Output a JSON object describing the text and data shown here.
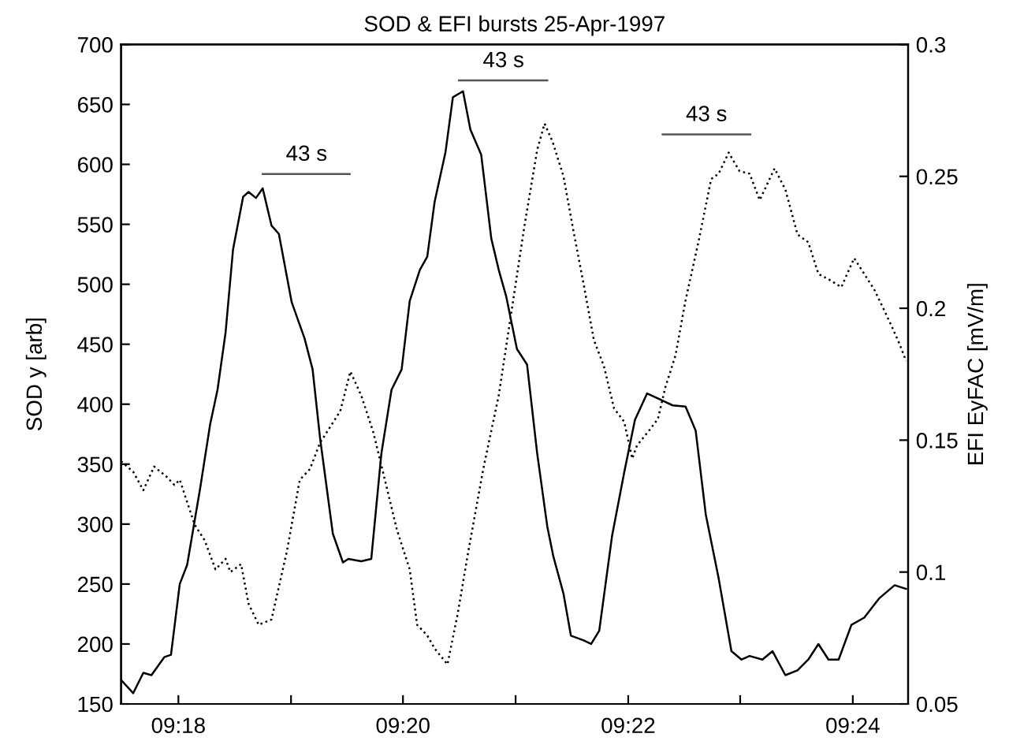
{
  "chart_data": {
    "type": "line",
    "title": "SOD & EFI bursts 25-Apr-1997",
    "ylabel": "SOD y [arb]",
    "y2label": "EFI EyFAC [mV/m]",
    "xlim": [
      9.2915,
      9.4082
    ],
    "xticks": [
      {
        "value": 9.3,
        "label": "09:18"
      },
      {
        "value": 9.3167,
        "label": null
      },
      {
        "value": 9.3333,
        "label": "09:20"
      },
      {
        "value": 9.35,
        "label": null
      },
      {
        "value": 9.3667,
        "label": "09:22"
      },
      {
        "value": 9.3833,
        "label": null
      },
      {
        "value": 9.4,
        "label": "09:24"
      }
    ],
    "ylim": [
      150,
      700
    ],
    "yticks": [
      150,
      200,
      250,
      300,
      350,
      400,
      450,
      500,
      550,
      600,
      650,
      700
    ],
    "y2lim": [
      0.05,
      0.3
    ],
    "y2ticks": [
      0.05,
      0.1,
      0.15,
      0.2,
      0.25,
      0.3
    ],
    "grid": false,
    "marker": "none",
    "series": [
      {
        "color": "#000000",
        "line_style": "solid",
        "x": [
          9.2915,
          9.2933,
          9.2948,
          9.296,
          9.2979,
          9.2989,
          9.3002,
          9.3013,
          9.3032,
          9.3047,
          9.3058,
          9.307,
          9.3081,
          9.3096,
          9.3104,
          9.3115,
          9.3125,
          9.3138,
          9.3149,
          9.3168,
          9.3187,
          9.3199,
          9.321,
          9.3229,
          9.3244,
          9.3252,
          9.3271,
          9.3286,
          9.3301,
          9.3316,
          9.3331,
          9.3343,
          9.3358,
          9.3369,
          9.338,
          9.3396,
          9.3407,
          9.3422,
          9.3433,
          9.3449,
          9.3464,
          9.3475,
          9.3486,
          9.3502,
          9.3517,
          9.3532,
          9.3547,
          9.3556,
          9.3571,
          9.3582,
          9.3601,
          9.3612,
          9.3624,
          9.3643,
          9.3661,
          9.3677,
          9.3695,
          9.3714,
          9.3733,
          9.3752,
          9.3767,
          9.3782,
          9.3801,
          9.382,
          9.3835,
          9.3847,
          9.3866,
          9.3881,
          9.39,
          9.3918,
          9.3934,
          9.3949,
          9.3964,
          9.3979,
          9.3998,
          9.4017,
          9.4039,
          9.4062,
          9.4079
        ],
        "values": [
          170,
          159,
          176,
          174,
          189,
          191,
          250,
          266,
          329,
          383,
          412,
          460,
          529,
          573,
          577,
          572,
          580,
          549,
          542,
          485,
          455,
          429,
          372,
          292,
          268,
          271,
          269,
          271,
          359,
          412,
          429,
          486,
          512,
          523,
          569,
          610,
          656,
          661,
          629,
          608,
          538,
          512,
          490,
          446,
          433,
          359,
          298,
          273,
          242,
          207,
          203,
          200,
          211,
          290,
          343,
          387,
          409,
          404,
          399,
          398,
          378,
          308,
          255,
          194,
          187,
          190,
          187,
          194,
          174,
          178,
          187,
          200,
          187,
          187,
          216,
          222,
          238,
          249,
          246
        ]
      },
      {
        "color": "#000000",
        "line_style": "dotted",
        "axis": "y2",
        "x": [
          9.2915,
          9.2933,
          9.2948,
          9.2964,
          9.2983,
          9.2994,
          9.3002,
          9.3024,
          9.3039,
          9.3055,
          9.307,
          9.3077,
          9.3093,
          9.3104,
          9.3119,
          9.3138,
          9.3161,
          9.318,
          9.3195,
          9.321,
          9.3225,
          9.324,
          9.3255,
          9.3271,
          9.3289,
          9.3308,
          9.3324,
          9.3343,
          9.3354,
          9.3369,
          9.338,
          9.3399,
          9.3414,
          9.343,
          9.3452,
          9.3475,
          9.3494,
          9.3513,
          9.3532,
          9.3543,
          9.3555,
          9.3571,
          9.3586,
          9.3601,
          9.3616,
          9.3631,
          9.3646,
          9.3661,
          9.3673,
          9.368,
          9.3699,
          9.3711,
          9.3722,
          9.3737,
          9.3752,
          9.3771,
          9.379,
          9.3801,
          9.3816,
          9.3832,
          9.3847,
          9.3862,
          9.3873,
          9.3884,
          9.39,
          9.3918,
          9.3934,
          9.3949,
          9.3964,
          9.3983,
          9.4002,
          9.4017,
          9.4032,
          9.4047,
          9.4058,
          9.407,
          9.4079
        ],
        "values": [
          0.142,
          0.138,
          0.131,
          0.14,
          0.136,
          0.133,
          0.135,
          0.118,
          0.112,
          0.101,
          0.105,
          0.1,
          0.103,
          0.088,
          0.08,
          0.082,
          0.108,
          0.135,
          0.139,
          0.149,
          0.155,
          0.161,
          0.176,
          0.167,
          0.153,
          0.133,
          0.116,
          0.101,
          0.08,
          0.076,
          0.071,
          0.065,
          0.084,
          0.108,
          0.139,
          0.167,
          0.199,
          0.231,
          0.26,
          0.27,
          0.263,
          0.25,
          0.229,
          0.209,
          0.188,
          0.178,
          0.162,
          0.157,
          0.143,
          0.148,
          0.154,
          0.158,
          0.17,
          0.182,
          0.203,
          0.225,
          0.249,
          0.251,
          0.259,
          0.252,
          0.251,
          0.241,
          0.247,
          0.253,
          0.245,
          0.228,
          0.225,
          0.213,
          0.211,
          0.208,
          0.219,
          0.213,
          0.207,
          0.199,
          0.193,
          0.186,
          0.18
        ]
      },
      {
        "color": "#555555",
        "line_style": "solid",
        "x": [
          9.3125,
          9.3254
        ],
        "values": [
          592,
          592
        ]
      },
      {
        "color": "#555555",
        "line_style": "solid",
        "x": [
          9.3416,
          9.3547
        ],
        "values": [
          670,
          670
        ]
      },
      {
        "color": "#555555",
        "line_style": "solid",
        "x": [
          9.3718,
          9.3848
        ],
        "values": [
          625,
          625
        ]
      }
    ],
    "annotations": [
      {
        "text": "43 s",
        "x": 9.319,
        "y": 592
      },
      {
        "text": "43 s",
        "x": 9.3482,
        "y": 670
      },
      {
        "text": "43 s",
        "x": 9.3783,
        "y": 625
      }
    ]
  }
}
